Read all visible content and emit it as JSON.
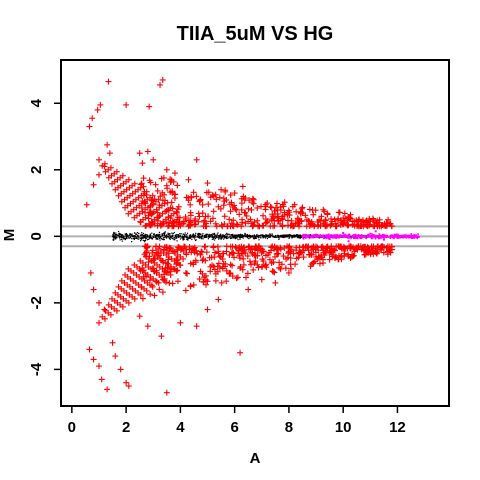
{
  "chart_data": {
    "type": "scatter",
    "title": "TIIA_5uM VS HG",
    "xlabel": "A",
    "ylabel": "M",
    "xlim": [
      -0.4,
      13.9
    ],
    "ylim": [
      -5.1,
      5.3
    ],
    "x_ticks": [
      0,
      2,
      4,
      6,
      8,
      10,
      12
    ],
    "y_ticks": [
      -4,
      -2,
      0,
      2,
      4
    ],
    "grid": false,
    "legend": "none",
    "reference_lines": [
      {
        "orientation": "horizontal",
        "y": 0,
        "color": "#b0b0b0"
      },
      {
        "orientation": "horizontal",
        "y": 0.3,
        "color": "#b0b0b0"
      },
      {
        "orientation": "horizontal",
        "y": -0.3,
        "color": "#b0b0b0"
      }
    ],
    "series": [
      {
        "role": "not-significant genes",
        "marker": "dot",
        "color": "#000000",
        "description_points": "dense band around M=0, x from ~1.5 to ~11.5"
      },
      {
        "role": "significant genes (high A)",
        "marker": "dot",
        "color": "#ff00ff",
        "points": [
          [
            9.0,
            0.05
          ],
          [
            9.5,
            -0.08
          ],
          [
            10.0,
            0.1
          ],
          [
            10.5,
            -0.05
          ],
          [
            11.0,
            0.08
          ],
          [
            11.5,
            -0.1
          ],
          [
            12.0,
            0.05
          ],
          [
            12.5,
            0.02
          ],
          [
            10.2,
            -0.15
          ],
          [
            11.2,
            0.15
          ]
        ]
      },
      {
        "role": "differentially expressed genes",
        "marker": "plus",
        "color": "#ff0000",
        "points": [
          [
            1.35,
            4.65
          ],
          [
            3.35,
            4.7
          ],
          [
            3.25,
            4.55
          ],
          [
            2.0,
            3.95
          ],
          [
            2.85,
            3.9
          ],
          [
            0.75,
            3.55
          ],
          [
            0.95,
            3.8
          ],
          [
            0.65,
            3.3
          ],
          [
            1.05,
            3.95
          ],
          [
            0.8,
            1.55
          ],
          [
            1.0,
            1.85
          ],
          [
            1.2,
            2.1
          ],
          [
            1.4,
            2.5
          ],
          [
            1.3,
            2.75
          ],
          [
            2.5,
            2.5
          ],
          [
            2.6,
            2.2
          ],
          [
            2.8,
            2.55
          ],
          [
            3.0,
            2.3
          ],
          [
            3.5,
            2.0
          ],
          [
            3.8,
            1.9
          ],
          [
            4.3,
            1.7
          ],
          [
            4.6,
            2.3
          ],
          [
            5.0,
            1.6
          ],
          [
            5.5,
            1.4
          ],
          [
            6.0,
            1.3
          ],
          [
            6.3,
            1.5
          ],
          [
            6.7,
            1.1
          ],
          [
            7.2,
            1.0
          ],
          [
            7.8,
            0.9
          ],
          [
            8.5,
            0.7
          ],
          [
            9.2,
            0.6
          ],
          [
            10.0,
            0.55
          ],
          [
            11.0,
            0.45
          ],
          [
            11.6,
            0.4
          ],
          [
            0.55,
            0.95
          ],
          [
            0.7,
            -1.1
          ],
          [
            0.8,
            -1.6
          ],
          [
            1.0,
            -2.0
          ],
          [
            1.2,
            -2.2
          ],
          [
            0.65,
            -3.4
          ],
          [
            0.8,
            -3.7
          ],
          [
            1.0,
            -3.9
          ],
          [
            1.1,
            -4.3
          ],
          [
            1.3,
            -4.6
          ],
          [
            1.6,
            -3.6
          ],
          [
            1.8,
            -4.0
          ],
          [
            2.0,
            -4.4
          ],
          [
            2.1,
            -4.5
          ],
          [
            1.5,
            -3.2
          ],
          [
            2.5,
            -2.4
          ],
          [
            2.8,
            -2.7
          ],
          [
            3.3,
            -3.0
          ],
          [
            3.5,
            -4.7
          ],
          [
            4.0,
            -2.6
          ],
          [
            4.6,
            -2.7
          ],
          [
            5.0,
            -2.2
          ],
          [
            5.4,
            -1.9
          ],
          [
            6.2,
            -3.5
          ],
          [
            6.5,
            -1.6
          ],
          [
            7.0,
            -1.3
          ],
          [
            7.5,
            -1.4
          ],
          [
            8.0,
            -1.1
          ],
          [
            8.8,
            -0.9
          ],
          [
            9.5,
            -0.7
          ],
          [
            10.2,
            -0.6
          ],
          [
            11.0,
            -0.5
          ],
          [
            11.8,
            -0.4
          ]
        ]
      }
    ]
  }
}
